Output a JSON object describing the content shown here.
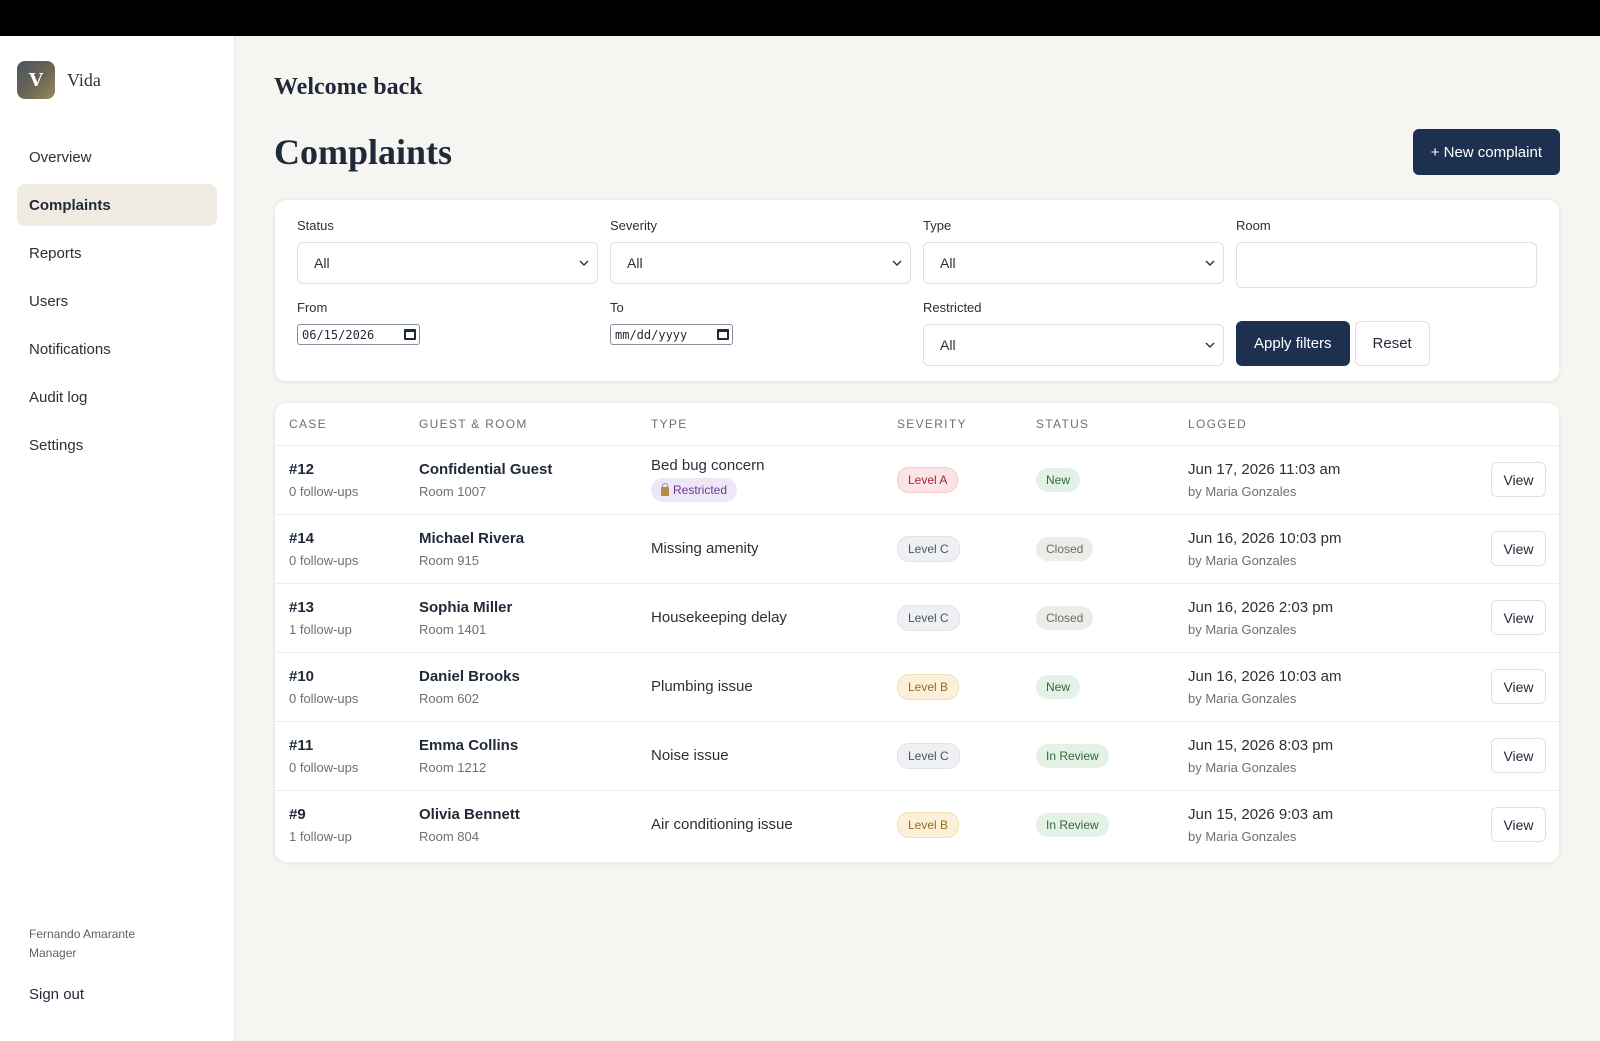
{
  "brand": {
    "initial": "V",
    "name": "Vida"
  },
  "sidebar": {
    "items": [
      {
        "label": "Overview"
      },
      {
        "label": "Complaints"
      },
      {
        "label": "Reports"
      },
      {
        "label": "Users"
      },
      {
        "label": "Notifications"
      },
      {
        "label": "Audit log"
      },
      {
        "label": "Settings"
      }
    ],
    "active": "Complaints",
    "user_name": "Fernando Amarante",
    "user_role": "Manager",
    "signout_label": "Sign out"
  },
  "header": {
    "welcome": "Welcome back",
    "title": "Complaints",
    "new_button": "+ New complaint"
  },
  "filters": {
    "status": {
      "label": "Status",
      "value": "All"
    },
    "severity": {
      "label": "Severity",
      "value": "All"
    },
    "type": {
      "label": "Type",
      "value": "All"
    },
    "room": {
      "label": "Room",
      "value": ""
    },
    "from": {
      "label": "From",
      "value": "06/15/2026"
    },
    "to": {
      "label": "To",
      "value": "mm/dd/yyyy"
    },
    "restricted": {
      "label": "Restricted",
      "value": "All"
    },
    "apply_label": "Apply filters",
    "reset_label": "Reset"
  },
  "table": {
    "headers": [
      "CASE",
      "GUEST & ROOM",
      "TYPE",
      "SEVERITY",
      "STATUS",
      "LOGGED"
    ],
    "rows": [
      {
        "case": "#12",
        "followups": "0 follow-ups",
        "guest": "Confidential Guest",
        "room": "Room 1007",
        "type": "Bed bug concern",
        "restricted": "Restricted",
        "severity": "Level A",
        "status": "New",
        "logged": "Jun 17, 2026 11:03 am",
        "by": "by Maria Gonzales",
        "action": "View"
      },
      {
        "case": "#14",
        "followups": "0 follow-ups",
        "guest": "Michael Rivera",
        "room": "Room 915",
        "type": "Missing amenity",
        "severity": "Level C",
        "status": "Closed",
        "logged": "Jun 16, 2026 10:03 pm",
        "by": "by Maria Gonzales",
        "action": "View"
      },
      {
        "case": "#13",
        "followups": "1 follow-up",
        "guest": "Sophia Miller",
        "room": "Room 1401",
        "type": "Housekeeping delay",
        "severity": "Level C",
        "status": "Closed",
        "logged": "Jun 16, 2026 2:03 pm",
        "by": "by Maria Gonzales",
        "action": "View"
      },
      {
        "case": "#10",
        "followups": "0 follow-ups",
        "guest": "Daniel Brooks",
        "room": "Room 602",
        "type": "Plumbing issue",
        "severity": "Level B",
        "status": "New",
        "logged": "Jun 16, 2026 10:03 am",
        "by": "by Maria Gonzales",
        "action": "View"
      },
      {
        "case": "#11",
        "followups": "0 follow-ups",
        "guest": "Emma Collins",
        "room": "Room 1212",
        "type": "Noise issue",
        "severity": "Level C",
        "status": "In Review",
        "logged": "Jun 15, 2026 8:03 pm",
        "by": "by Maria Gonzales",
        "action": "View"
      },
      {
        "case": "#9",
        "followups": "1 follow-up",
        "guest": "Olivia Bennett",
        "room": "Room 804",
        "type": "Air conditioning issue",
        "severity": "Level B",
        "status": "In Review",
        "logged": "Jun 15, 2026 9:03 am",
        "by": "by Maria Gonzales",
        "action": "View"
      }
    ]
  },
  "colors": {
    "primary": "#1e3050",
    "background": "#f7f5f2",
    "active_nav": "#efebe1"
  }
}
